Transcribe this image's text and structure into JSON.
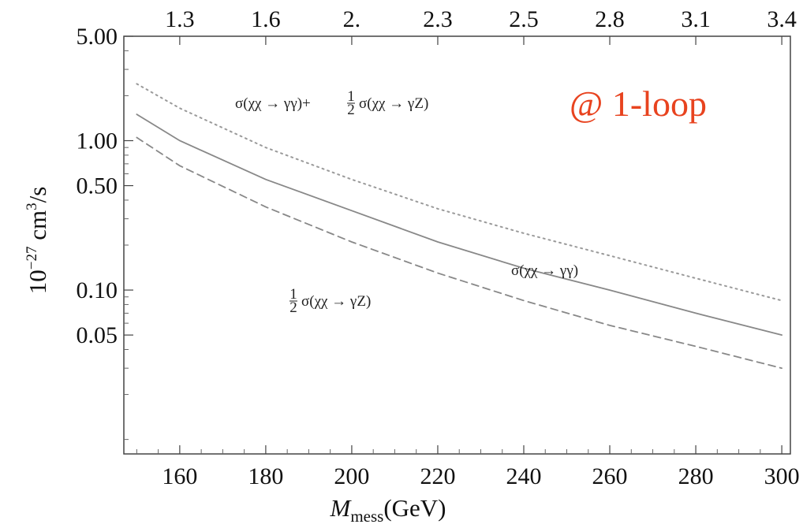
{
  "chart_data": {
    "type": "line",
    "xlabel": "M",
    "xlabel_sub": "mess",
    "xlabel_unit": "(GeV)",
    "ylabel": "10",
    "ylabel_exp": "−27",
    "ylabel_rest": " cm",
    "ylabel_exp2": "3",
    "ylabel_tail": "/s",
    "y_scale": "log",
    "xlim": [
      147,
      302
    ],
    "ylim": [
      0.008,
      5.0
    ],
    "x_ticks": [
      "160",
      "180",
      "200",
      "220",
      "240",
      "260",
      "280",
      "300"
    ],
    "x_tick_values": [
      160,
      180,
      200,
      220,
      240,
      260,
      280,
      300
    ],
    "y_ticks": [
      "5.00",
      "1.00",
      "0.50",
      "0.10",
      "0.05"
    ],
    "y_tick_values": [
      5.0,
      1.0,
      0.5,
      0.1,
      0.05
    ],
    "top_ticks": [
      "1.3",
      "1.6",
      "2.",
      "2.3",
      "2.5",
      "2.8",
      "3.1",
      "3.4"
    ],
    "top_tick_positions": [
      160,
      180,
      200,
      220,
      240,
      260,
      280,
      300
    ],
    "grid": false,
    "series": [
      {
        "style": "dotted",
        "color": "#9a9a9a",
        "x": [
          150,
          160,
          180,
          200,
          220,
          240,
          260,
          280,
          300
        ],
        "y": [
          2.4,
          1.65,
          0.9,
          0.55,
          0.35,
          0.24,
          0.17,
          0.12,
          0.085
        ]
      },
      {
        "style": "solid",
        "color": "#888888",
        "x": [
          150,
          160,
          180,
          200,
          220,
          240,
          260,
          280,
          300
        ],
        "y": [
          1.5,
          1.0,
          0.55,
          0.34,
          0.21,
          0.14,
          0.1,
          0.07,
          0.05
        ]
      },
      {
        "style": "dashed",
        "color": "#888888",
        "x": [
          150,
          160,
          180,
          200,
          220,
          240,
          260,
          280,
          300
        ],
        "y": [
          1.05,
          0.68,
          0.36,
          0.21,
          0.13,
          0.085,
          0.058,
          0.042,
          0.03
        ]
      }
    ],
    "annotations": {
      "top_label_a": "σ(χχ → γγ)+",
      "top_label_frac_num": "1",
      "top_label_frac_den": "2",
      "top_label_b": "σ(χχ → γZ)",
      "mid_label": "σ(χχ → γγ)",
      "low_label_frac_num": "1",
      "low_label_frac_den": "2",
      "low_label": "σ(χχ → γZ)",
      "note": "@ 1-loop",
      "note_color": "#e8431f"
    }
  }
}
